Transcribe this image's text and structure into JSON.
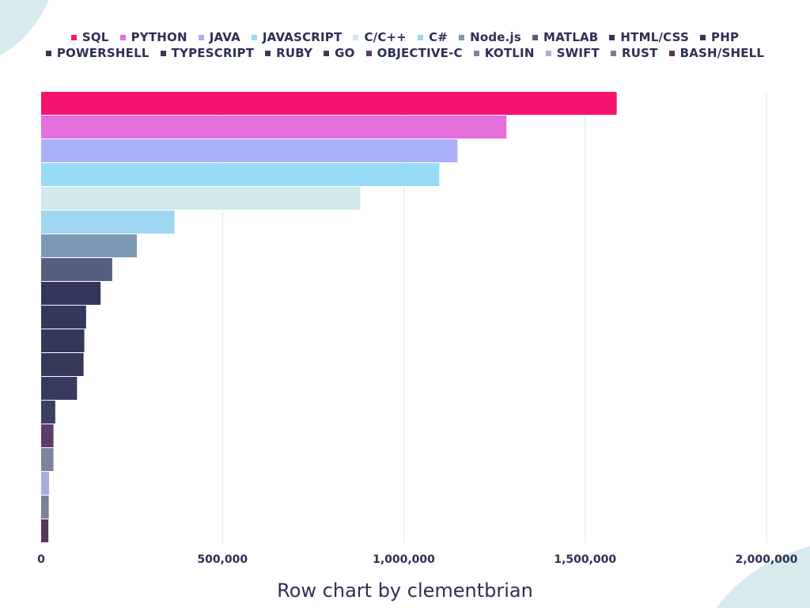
{
  "chart_data": {
    "type": "bar",
    "orientation": "horizontal",
    "categories": [
      "SQL",
      "PYTHON",
      "JAVA",
      "JAVASCRIPT",
      "C/C++",
      "C#",
      "Node.js",
      "MATLAB",
      "HTML/CSS",
      "PHP",
      "POWERSHELL",
      "TYPESCRIPT",
      "RUBY",
      "GO",
      "OBJECTIVE-C",
      "KOTLIN",
      "SWIFT",
      "RUST",
      "BASH/SHELL"
    ],
    "values": [
      1587000,
      1283000,
      1148000,
      1098000,
      880000,
      368000,
      264000,
      196000,
      164000,
      124000,
      119000,
      117000,
      99000,
      39000,
      34000,
      34000,
      22000,
      21000,
      20000
    ],
    "colors": [
      "#f7146f",
      "#e56fdc",
      "#a9b0f7",
      "#97dcf7",
      "#d1eae9",
      "#9fd6f2",
      "#7c98b6",
      "#56607e",
      "#33355b",
      "#34375c",
      "#353759",
      "#36385a",
      "#373a5c",
      "#3d3f60",
      "#5c3d6a",
      "#7d839e",
      "#a8acdc",
      "#7b7f99",
      "#5a3460"
    ],
    "legend": [
      "SQL",
      "PYTHON",
      "JAVA",
      "JAVASCRIPT",
      "C/C++",
      "C#",
      "Node.js",
      "MATLAB",
      "HTML/CSS",
      "PHP",
      "POWERSHELL",
      "TYPESCRIPT",
      "RUBY",
      "GO",
      "OBJECTIVE-C",
      "KOTLIN",
      "SWIFT",
      "RUST",
      "BASH/SHELL"
    ],
    "legend_position": "top",
    "xlim": [
      0,
      2000000
    ],
    "xticks": [
      0,
      500000,
      1000000,
      1500000,
      2000000
    ],
    "xtick_labels": [
      "0",
      "500,000",
      "1,000,000",
      "1,500,000",
      "2,000,000"
    ],
    "grid": "vertical",
    "title": "",
    "xlabel": "",
    "ylabel": ""
  },
  "footer": {
    "caption": "Row chart by clementbrian"
  },
  "theme": {
    "text_color": "#2d2f55",
    "grid_color": "#d5ecea",
    "decoration_color": "#d7ebef"
  }
}
